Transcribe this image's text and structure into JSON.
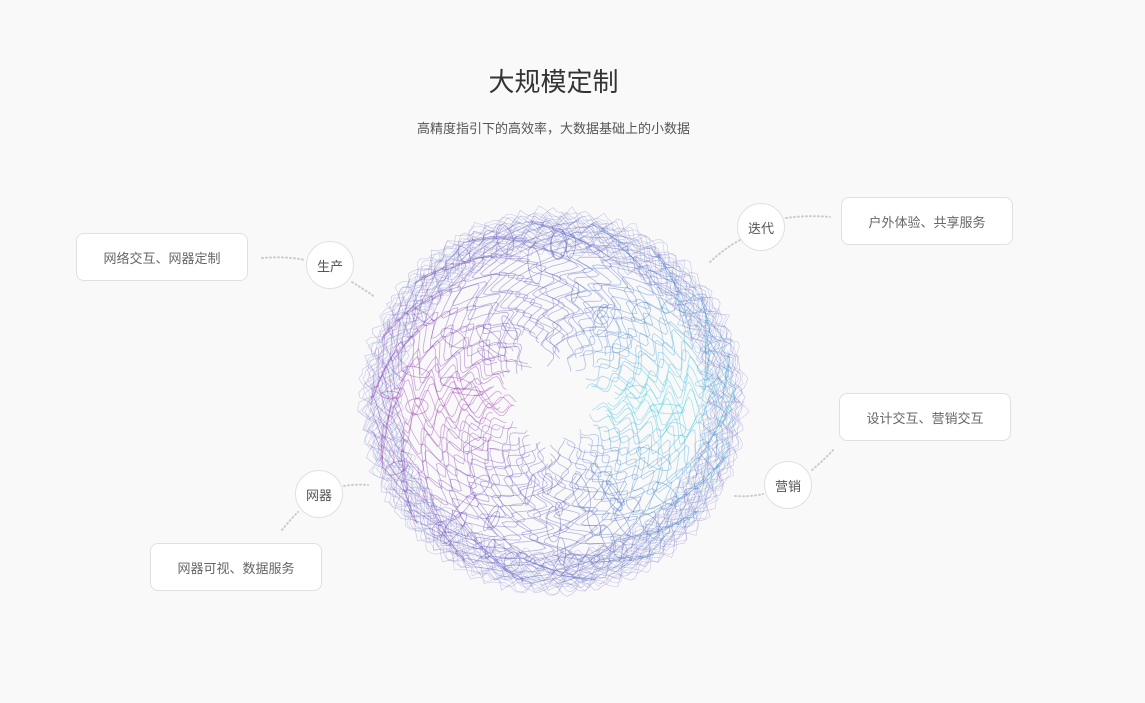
{
  "header": {
    "title": "大规模定制",
    "subtitle": "高精度指引下的高效率，大数据基础上的小数据"
  },
  "nodes": [
    {
      "label": "生产",
      "description": "网络交互、网器定制"
    },
    {
      "label": "迭代",
      "description": "户外体验、共享服务"
    },
    {
      "label": "营销",
      "description": "设计交互、营销交互"
    },
    {
      "label": "网器",
      "description": "网器可视、数据服务"
    }
  ],
  "colors": {
    "left": "#a23cb4",
    "right": "#3fd2e2",
    "rim": "#5a4cb8",
    "connector": "#cccccc"
  }
}
